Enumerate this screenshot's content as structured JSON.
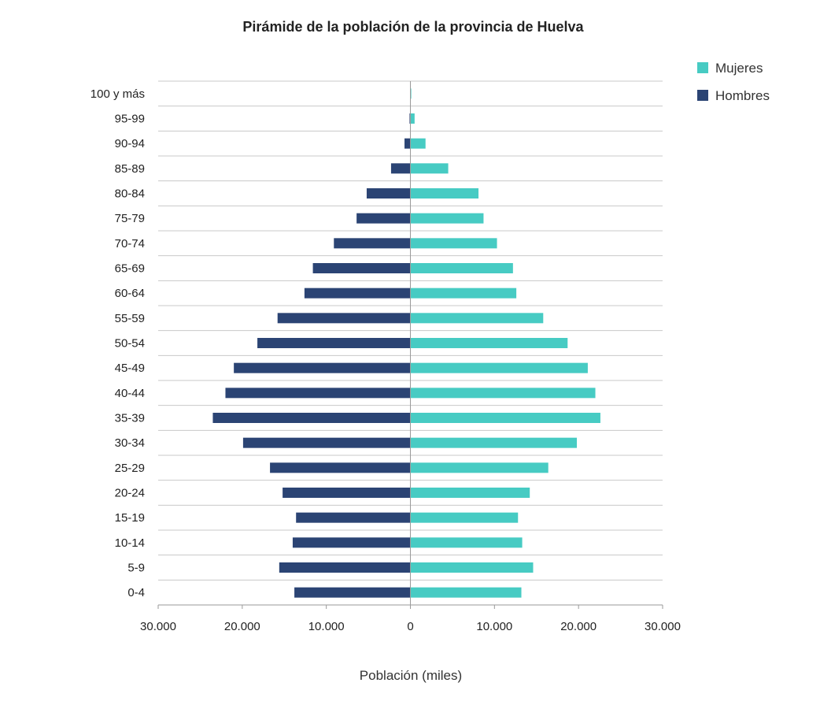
{
  "chart_data": {
    "type": "bar",
    "orientation": "horizontal",
    "layout": "population-pyramid",
    "title": "Pirámide de la población de la provincia de Huelva",
    "xlabel": "Población (miles)",
    "ylabel": "",
    "xlim": [
      -30000,
      30000
    ],
    "x_ticks": [
      -30000,
      -20000,
      -10000,
      0,
      10000,
      20000,
      30000
    ],
    "x_tick_labels": [
      "30.000",
      "20.000",
      "10.000",
      "0",
      "10.000",
      "20.000",
      "30.000"
    ],
    "categories": [
      "100 y más",
      "95-99",
      "90-94",
      "85-89",
      "80-84",
      "75-79",
      "70-74",
      "65-69",
      "60-64",
      "55-59",
      "50-54",
      "45-49",
      "40-44",
      "35-39",
      "30-34",
      "25-29",
      "20-24",
      "15-19",
      "10-14",
      "5-9",
      "0-4"
    ],
    "legend_position": "top-right",
    "grid": true,
    "series": [
      {
        "name": "Mujeres",
        "color": "#47CBC3",
        "side": "right",
        "values": [
          100,
          500,
          1800,
          4500,
          8100,
          8700,
          10300,
          12200,
          12600,
          15800,
          18700,
          21100,
          22000,
          22600,
          19800,
          16400,
          14200,
          12800,
          13300,
          14600,
          13200
        ]
      },
      {
        "name": "Hombres",
        "color": "#2B4474",
        "side": "left",
        "values": [
          0,
          100,
          700,
          2300,
          5200,
          6400,
          9100,
          11600,
          12600,
          15800,
          18200,
          21000,
          22000,
          23500,
          19900,
          16700,
          15200,
          13600,
          14000,
          15600,
          13800
        ]
      }
    ]
  }
}
